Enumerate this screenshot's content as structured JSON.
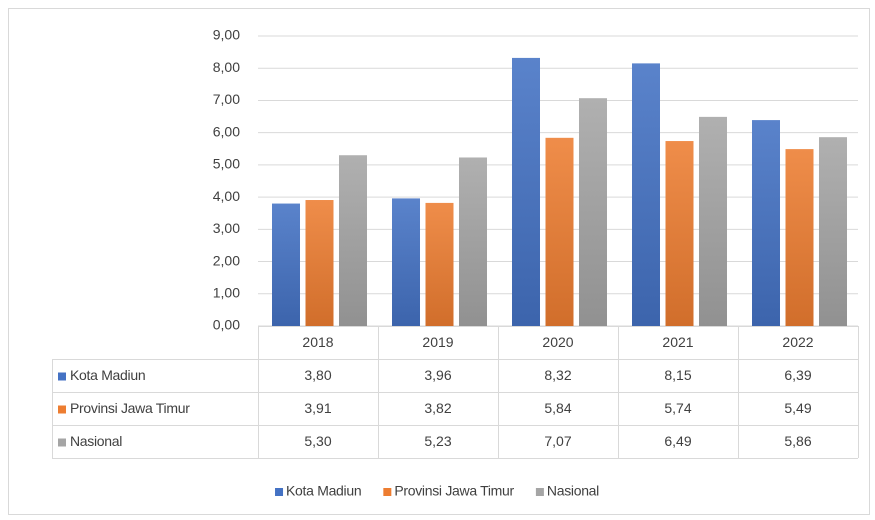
{
  "chart_data": {
    "type": "bar",
    "categories": [
      "2018",
      "2019",
      "2020",
      "2021",
      "2022"
    ],
    "series": [
      {
        "name": "Kota Madiun",
        "color": "#4472c4",
        "values": [
          3.8,
          3.96,
          8.32,
          8.15,
          6.39
        ],
        "value_labels": [
          "3,80",
          "3,96",
          "8,32",
          "8,15",
          "6,39"
        ]
      },
      {
        "name": "Provinsi Jawa Timur",
        "color": "#ed7d31",
        "values": [
          3.91,
          3.82,
          5.84,
          5.74,
          5.49
        ],
        "value_labels": [
          "3,91",
          "3,82",
          "5,84",
          "5,74",
          "5,49"
        ]
      },
      {
        "name": "Nasional",
        "color": "#a5a5a5",
        "values": [
          5.3,
          5.23,
          7.07,
          6.49,
          5.86
        ],
        "value_labels": [
          "5,30",
          "5,23",
          "7,07",
          "6,49",
          "5,86"
        ]
      }
    ],
    "ylim": [
      0,
      9
    ],
    "yticks": [
      {
        "value": 0,
        "label": "0,00"
      },
      {
        "value": 1,
        "label": "1,00"
      },
      {
        "value": 2,
        "label": "2,00"
      },
      {
        "value": 3,
        "label": "3,00"
      },
      {
        "value": 4,
        "label": "4,00"
      },
      {
        "value": 5,
        "label": "5,00"
      },
      {
        "value": 6,
        "label": "6,00"
      },
      {
        "value": 7,
        "label": "7,00"
      },
      {
        "value": 8,
        "label": "8,00"
      },
      {
        "value": 9,
        "label": "9,00"
      }
    ],
    "grid": true,
    "legend": "bottom"
  }
}
